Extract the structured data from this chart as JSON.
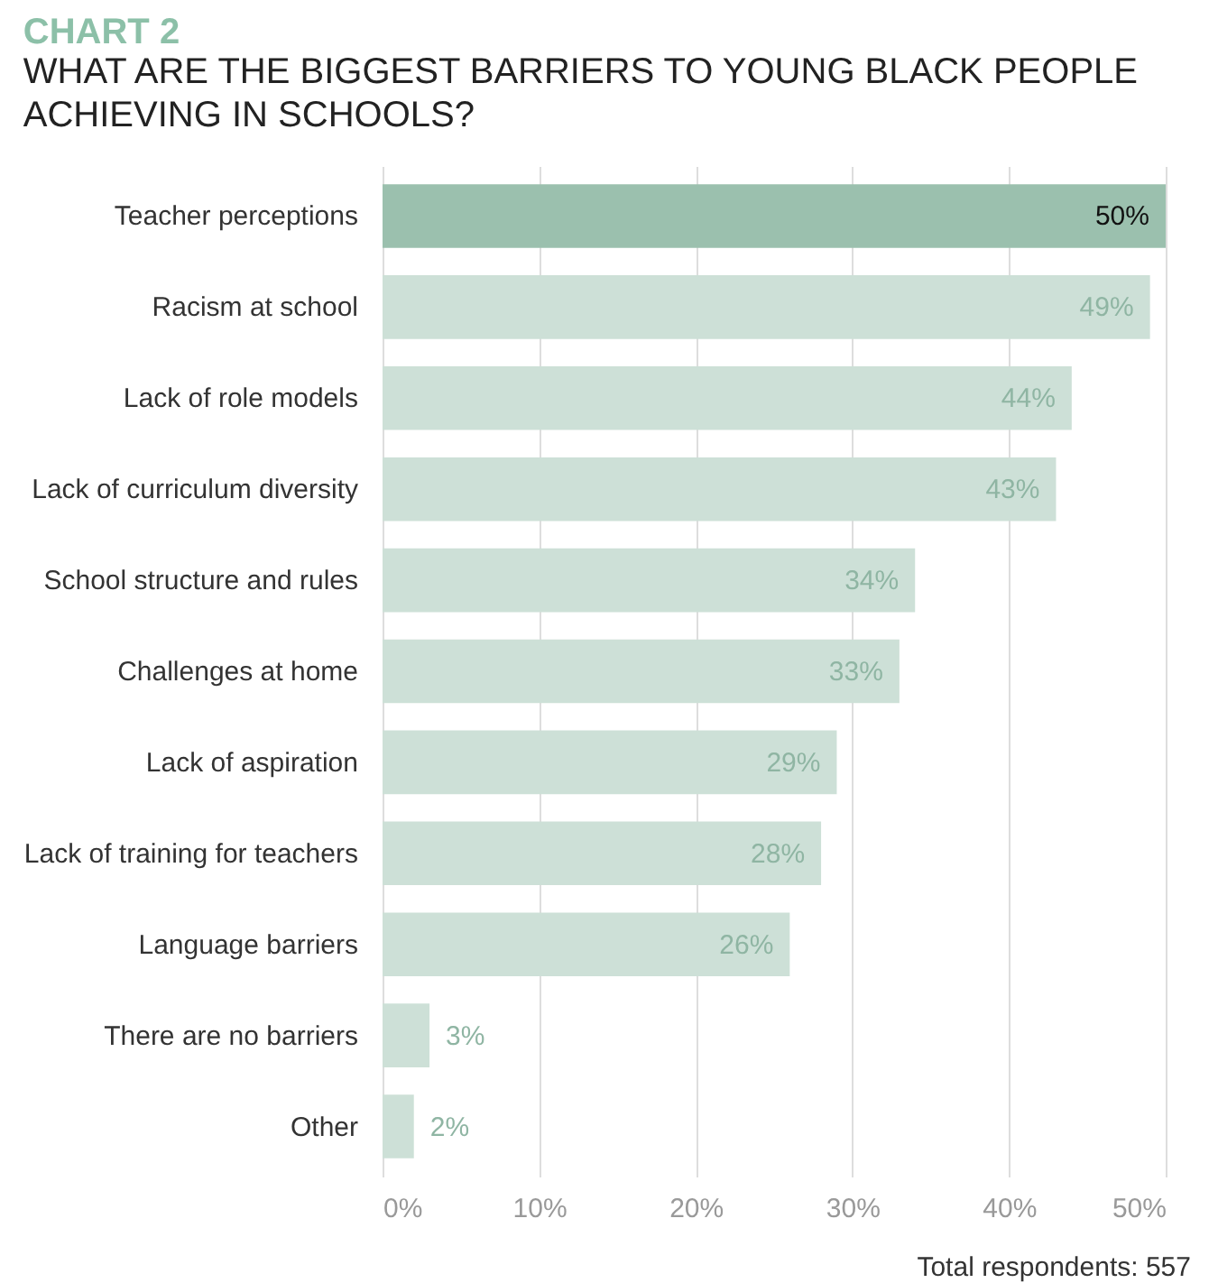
{
  "chart_data": {
    "type": "bar",
    "orientation": "horizontal",
    "title": "CHART 2",
    "subtitle": "WHAT ARE THE BIGGEST BARRIERS TO YOUNG BLACK PEOPLE ACHIEVING IN SCHOOLS?",
    "categories": [
      "Teacher perceptions",
      "Racism at school",
      "Lack of role models",
      "Lack of curriculum diversity",
      "School structure and rules",
      "Challenges at home",
      "Lack of aspiration",
      "Lack of training for teachers",
      "Language barriers",
      "There are no barriers",
      "Other"
    ],
    "values": [
      50,
      49,
      44,
      43,
      34,
      33,
      29,
      28,
      26,
      3,
      2
    ],
    "colors": [
      "#9bc0ae",
      "#cde0d7",
      "#cde0d7",
      "#cde0d7",
      "#cde0d7",
      "#cde0d7",
      "#cde0d7",
      "#cde0d7",
      "#cde0d7",
      "#cde0d7",
      "#cde0d7"
    ],
    "value_labels": [
      "50%",
      "49%",
      "44%",
      "43%",
      "34%",
      "33%",
      "29%",
      "28%",
      "26%",
      "3%",
      "2%"
    ],
    "xlim": [
      0,
      50
    ],
    "xticks": [
      {
        "value": 0,
        "label": "0%"
      },
      {
        "value": 10,
        "label": "10%"
      },
      {
        "value": 20,
        "label": "20%"
      },
      {
        "value": 30,
        "label": "30%"
      },
      {
        "value": 40,
        "label": "40%"
      },
      {
        "value": 50,
        "label": "50%"
      }
    ],
    "grid": "x",
    "annotations": [
      "Total respondents: 557"
    ]
  }
}
